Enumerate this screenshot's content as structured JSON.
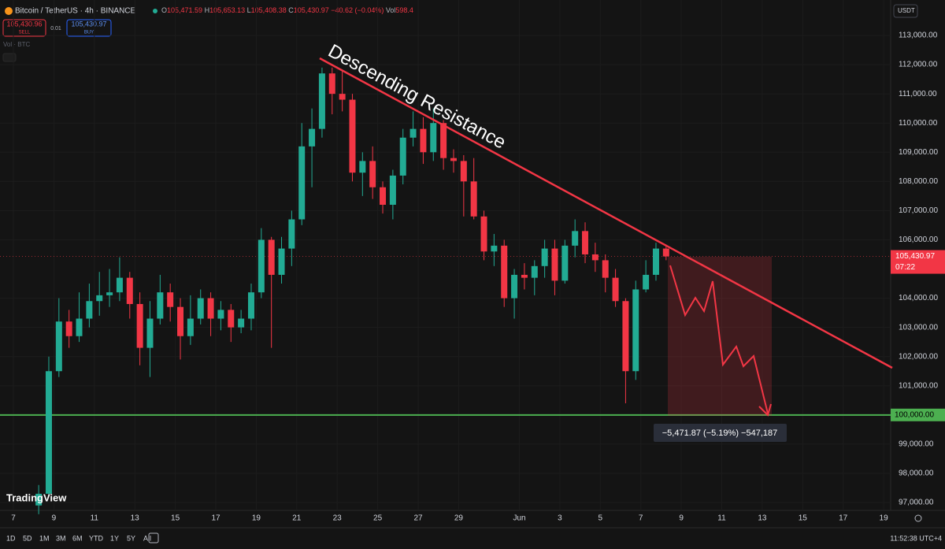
{
  "header": {
    "symbol": "Bitcoin / TetherUS · 4h · BINANCE",
    "ohlc": [
      {
        "key": "O",
        "value": "105,471.59"
      },
      {
        "key": "H",
        "value": "105,653.13"
      },
      {
        "key": "L",
        "value": "105,408.38"
      },
      {
        "key": "C",
        "value": "105,430.97"
      }
    ],
    "change": "−40.62 (−0.04%)",
    "volume_key": "Vol",
    "volume": "598.4"
  },
  "trade": {
    "sell_price": "105,430.96",
    "sell": "SELL",
    "spread": "0.01",
    "buy_price": "105,430.97",
    "buy": "BUY"
  },
  "indicator": "Vol · BTC",
  "currency": "USDT",
  "logo": "TradingView",
  "chart_data": {
    "type": "candlestick",
    "up_color": "#22ab94",
    "down_color": "#f23645",
    "open": [
      96900,
      97300,
      101500,
      103200,
      102700,
      103300,
      103900,
      104100,
      104200,
      104700,
      103800,
      102300,
      103300,
      104200,
      103700,
      102700,
      103300,
      104000,
      103300,
      103600,
      103000,
      103300,
      104200,
      106000,
      104800,
      105700,
      106700,
      109200,
      109800,
      111700,
      111000,
      110800,
      108300,
      108700,
      107800,
      107200,
      108200,
      109500,
      109800,
      109000,
      110000,
      108800,
      108700,
      108000,
      106800,
      105600,
      105800,
      104000,
      104800,
      104700,
      105100,
      105700,
      104600,
      105800,
      106300,
      105500,
      105300,
      104700,
      103900,
      101500,
      104300,
      104800,
      105700
    ],
    "high": [
      97600,
      102000,
      104000,
      103600,
      104200,
      104500,
      104900,
      105000,
      105400,
      104900,
      104200,
      103900,
      104800,
      104500,
      104000,
      104100,
      104300,
      104200,
      103900,
      103800,
      103600,
      104500,
      106400,
      106100,
      106100,
      107000,
      110000,
      110500,
      111900,
      111900,
      111800,
      111000,
      109000,
      109200,
      108000,
      108400,
      109800,
      110400,
      110200,
      110500,
      110100,
      109100,
      108900,
      108800,
      107000,
      106200,
      106000,
      105000,
      105200,
      105300,
      106000,
      106000,
      106000,
      106700,
      106600,
      105900,
      105500,
      105000,
      104000,
      104600,
      105300,
      105900,
      105800
    ],
    "low": [
      96600,
      97200,
      101300,
      102300,
      102500,
      103000,
      103400,
      103700,
      103900,
      103300,
      101700,
      101300,
      103100,
      103200,
      101900,
      102400,
      103100,
      102700,
      102900,
      102500,
      102800,
      102900,
      104000,
      102300,
      104500,
      105100,
      106500,
      107800,
      109500,
      110300,
      110400,
      108000,
      107500,
      107400,
      106900,
      106700,
      107900,
      109200,
      108600,
      108700,
      108400,
      108300,
      106800,
      106700,
      105300,
      105100,
      103700,
      103300,
      104300,
      104100,
      104700,
      104100,
      104500,
      105400,
      105200,
      104900,
      104200,
      103700,
      100400,
      101200,
      104200,
      104600,
      105300
    ],
    "close": [
      97300,
      101500,
      103200,
      102700,
      103300,
      103900,
      104100,
      104200,
      104700,
      103800,
      102300,
      103300,
      104200,
      103700,
      102700,
      103300,
      104000,
      103300,
      103600,
      103000,
      103300,
      104200,
      106000,
      104800,
      105700,
      106700,
      109200,
      109800,
      111700,
      111000,
      110800,
      108300,
      108700,
      107800,
      107200,
      108200,
      109500,
      109800,
      109000,
      110000,
      108800,
      108700,
      108000,
      106800,
      105600,
      105800,
      104000,
      104800,
      104700,
      105100,
      105700,
      104600,
      105800,
      106300,
      105500,
      105300,
      104700,
      103900,
      101500,
      104300,
      104800,
      105700,
      105431
    ],
    "ylim": [
      96730,
      114215
    ],
    "yticks": [
      {
        "value": 97000,
        "label": "97,000.00"
      },
      {
        "value": 98000,
        "label": "98,000.00"
      },
      {
        "value": 99000,
        "label": "99,000.00"
      },
      {
        "value": 101000,
        "label": "101,000.00"
      },
      {
        "value": 102000,
        "label": "102,000.00"
      },
      {
        "value": 103000,
        "label": "103,000.00"
      },
      {
        "value": 104000,
        "label": "104,000.00"
      },
      {
        "value": 106000,
        "label": "106,000.00"
      },
      {
        "value": 107000,
        "label": "107,000.00"
      },
      {
        "value": 108000,
        "label": "108,000.00"
      },
      {
        "value": 109000,
        "label": "109,000.00"
      },
      {
        "value": 110000,
        "label": "110,000.00"
      },
      {
        "value": 111000,
        "label": "111,000.00"
      },
      {
        "value": 112000,
        "label": "112,000.00"
      },
      {
        "value": 113000,
        "label": "113,000.00"
      }
    ],
    "xticks": [
      "7",
      "9",
      "11",
      "13",
      "15",
      "17",
      "19",
      "21",
      "23",
      "25",
      "27",
      "29",
      "Jun",
      "3",
      "5",
      "7",
      "9",
      "11",
      "13",
      "15",
      "17",
      "19"
    ],
    "annotation": "Descending Resistance",
    "support": {
      "value": 100000,
      "label": "100,000.00",
      "color": "#4caf50"
    },
    "last_price": {
      "value": 105430.97,
      "label": "105,430.97"
    },
    "countdown": "07:22",
    "measure": "−5,471.87 (−5.19%) −547,187"
  },
  "toolbar": {
    "ranges": [
      "1D",
      "5D",
      "1M",
      "3M",
      "6M",
      "YTD",
      "1Y",
      "5Y",
      "All"
    ],
    "clock": "11:52:38 UTC+4"
  }
}
